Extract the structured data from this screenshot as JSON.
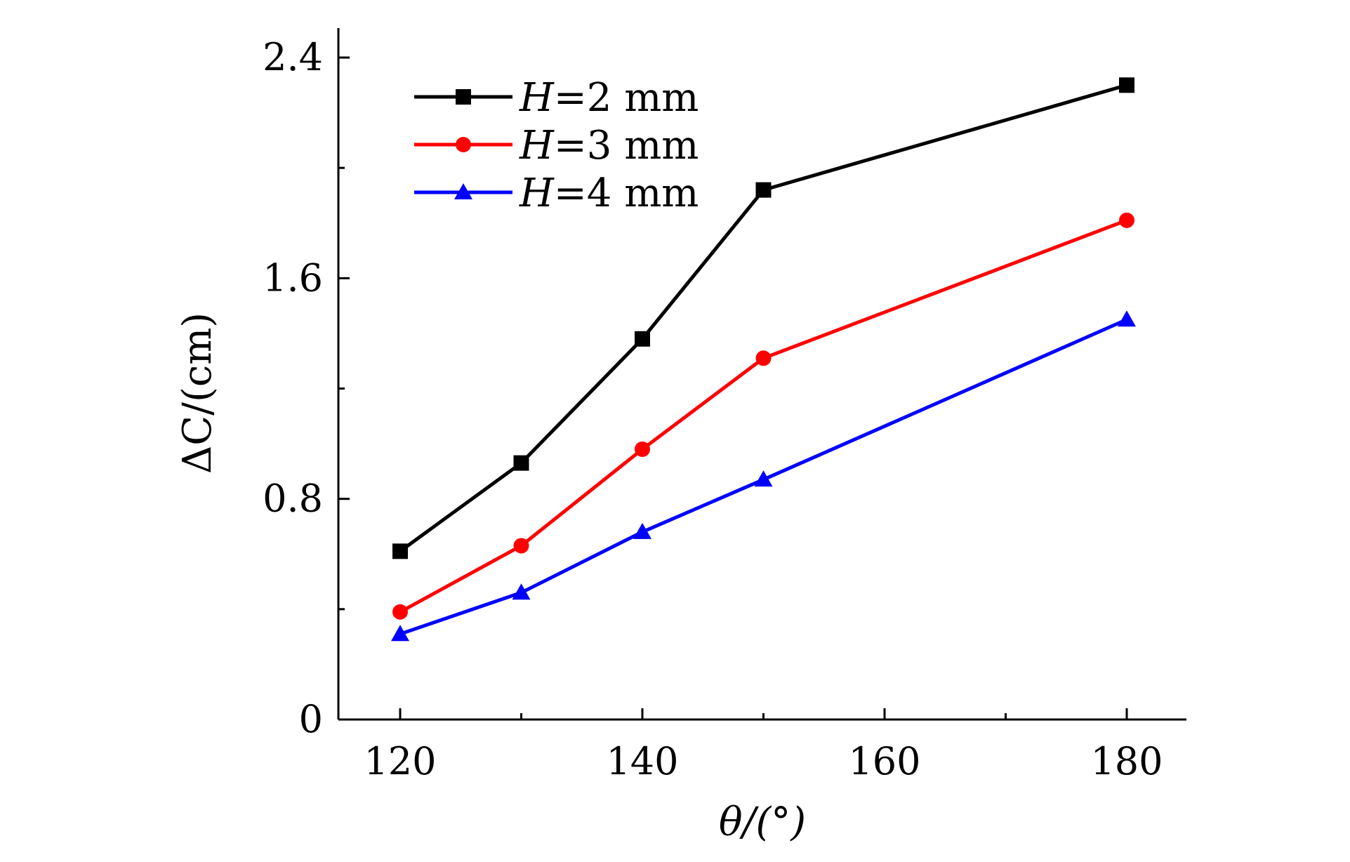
{
  "chart_data": {
    "type": "line",
    "title": "",
    "xlabel": "θ/(°)",
    "ylabel": "ΔC/(cm)",
    "xlim": [
      115,
      185
    ],
    "ylim": [
      0,
      2.5
    ],
    "x_ticks_major": [
      120,
      140,
      160,
      180
    ],
    "x_tick_labels": [
      "120",
      "140",
      "160",
      "180"
    ],
    "x_ticks_minor": [
      130,
      150,
      170
    ],
    "y_ticks_major": [
      0,
      0.8,
      1.6,
      2.4
    ],
    "y_tick_labels": [
      "0",
      "0.8",
      "1.6",
      "2.4"
    ],
    "y_ticks_minor": [
      0.4,
      1.2,
      2.0
    ],
    "grid": false,
    "legend_position": "top-left",
    "series": [
      {
        "name": "H=2 mm",
        "italic_part": "H",
        "rest": "=2 mm",
        "color": "#000000",
        "marker": "square",
        "x": [
          120,
          130,
          140,
          150,
          180
        ],
        "values": [
          0.61,
          0.93,
          1.38,
          1.92,
          2.3
        ]
      },
      {
        "name": "H=3 mm",
        "italic_part": "H",
        "rest": "=3 mm",
        "color": "#ff0000",
        "marker": "circle",
        "x": [
          120,
          130,
          140,
          150,
          180
        ],
        "values": [
          0.39,
          0.63,
          0.98,
          1.31,
          1.81
        ]
      },
      {
        "name": "H=4 mm",
        "italic_part": "H",
        "rest": "=4 mm",
        "color": "#0000ff",
        "marker": "triangle",
        "x": [
          120,
          130,
          140,
          150,
          180
        ],
        "values": [
          0.31,
          0.46,
          0.68,
          0.87,
          1.45
        ]
      }
    ]
  }
}
